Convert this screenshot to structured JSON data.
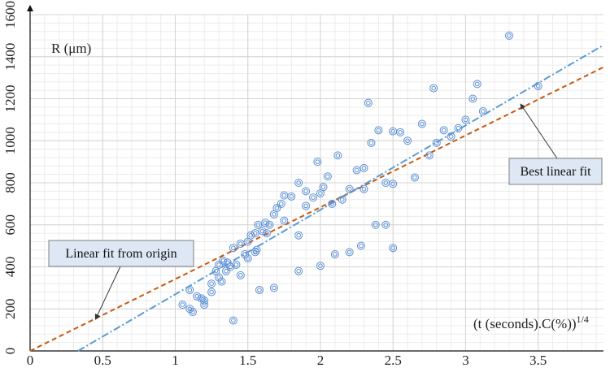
{
  "chart_data": {
    "type": "scatter",
    "ylabel": "R (μm)",
    "xlabel_base": "(t (seconds).C(%))",
    "xlabel_sup": "1/4",
    "xlim": [
      0,
      3.95
    ],
    "ylim": [
      0,
      1600
    ],
    "x_ticks": [
      "0",
      "0.5",
      "1",
      "1.5",
      "2",
      "2.5",
      "3",
      "3.5"
    ],
    "x_tick_values": [
      0,
      0.5,
      1,
      1.5,
      2,
      2.5,
      3,
      3.5
    ],
    "y_ticks": [
      "0",
      "200",
      "400",
      "600",
      "800",
      "1000",
      "1200",
      "1400",
      "1600"
    ],
    "y_tick_values": [
      0,
      200,
      400,
      600,
      800,
      1000,
      1200,
      1400,
      1600
    ],
    "grid": true,
    "marker_color": "#5b8fd4",
    "points": [
      [
        1.05,
        220
      ],
      [
        1.1,
        200
      ],
      [
        1.12,
        185
      ],
      [
        1.1,
        290
      ],
      [
        1.15,
        260
      ],
      [
        1.18,
        250
      ],
      [
        1.2,
        240
      ],
      [
        1.2,
        220
      ],
      [
        1.25,
        320
      ],
      [
        1.28,
        380
      ],
      [
        1.3,
        350
      ],
      [
        1.32,
        330
      ],
      [
        1.3,
        410
      ],
      [
        1.33,
        430
      ],
      [
        1.36,
        420
      ],
      [
        1.38,
        400
      ],
      [
        1.4,
        490
      ],
      [
        1.42,
        410
      ],
      [
        1.45,
        510
      ],
      [
        1.48,
        460
      ],
      [
        1.5,
        520
      ],
      [
        1.52,
        550
      ],
      [
        1.55,
        560
      ],
      [
        1.56,
        480
      ],
      [
        1.57,
        600
      ],
      [
        1.6,
        570
      ],
      [
        1.62,
        610
      ],
      [
        1.65,
        600
      ],
      [
        1.68,
        650
      ],
      [
        1.7,
        680
      ],
      [
        1.73,
        700
      ],
      [
        1.75,
        740
      ],
      [
        1.8,
        735
      ],
      [
        1.85,
        800
      ],
      [
        1.9,
        690
      ],
      [
        1.95,
        730
      ],
      [
        1.98,
        900
      ],
      [
        2.0,
        750
      ],
      [
        2.02,
        780
      ],
      [
        2.05,
        830
      ],
      [
        2.08,
        700
      ],
      [
        2.12,
        930
      ],
      [
        2.15,
        720
      ],
      [
        2.2,
        770
      ],
      [
        2.25,
        860
      ],
      [
        2.3,
        770
      ],
      [
        2.35,
        990
      ],
      [
        2.4,
        1050
      ],
      [
        2.45,
        800
      ],
      [
        2.5,
        795
      ],
      [
        2.5,
        1045
      ],
      [
        2.55,
        1040
      ],
      [
        2.6,
        1000
      ],
      [
        2.65,
        825
      ],
      [
        2.7,
        1080
      ],
      [
        2.75,
        930
      ],
      [
        2.8,
        990
      ],
      [
        2.85,
        1050
      ],
      [
        2.9,
        1020
      ],
      [
        2.95,
        1060
      ],
      [
        3.0,
        1100
      ],
      [
        3.05,
        1200
      ],
      [
        3.08,
        1270
      ],
      [
        3.12,
        1140
      ],
      [
        2.33,
        1180
      ],
      [
        2.78,
        1250
      ],
      [
        3.3,
        1500
      ],
      [
        3.5,
        1260
      ],
      [
        2.3,
        870
      ],
      [
        1.45,
        360
      ],
      [
        1.5,
        440
      ],
      [
        1.55,
        470
      ],
      [
        1.58,
        290
      ],
      [
        1.68,
        300
      ],
      [
        1.4,
        145
      ],
      [
        1.85,
        380
      ],
      [
        2.0,
        405
      ],
      [
        2.1,
        460
      ],
      [
        2.2,
        470
      ],
      [
        2.28,
        500
      ],
      [
        2.45,
        600
      ],
      [
        2.5,
        490
      ],
      [
        2.38,
        600
      ],
      [
        1.85,
        550
      ],
      [
        1.75,
        620
      ],
      [
        1.9,
        760
      ],
      [
        1.63,
        560
      ],
      [
        1.25,
        280
      ],
      [
        1.35,
        380
      ]
    ],
    "fits": [
      {
        "name": "Linear fit from origin",
        "color": "#c55a11",
        "dash": "6,4",
        "x1": 0,
        "y1": 0,
        "x2": 3.95,
        "y2": 1350
      },
      {
        "name": "Best linear fit",
        "color": "#5b9bd5",
        "dash": "9,3,2,3",
        "x1": 0.33,
        "y1": 0,
        "x2": 3.95,
        "y2": 1455
      }
    ],
    "annotations": [
      {
        "text": "Linear fit from origin",
        "box_x": 0.27,
        "box_y": 580,
        "w": 3.2,
        "target_x": 0.45,
        "target_y": 150
      },
      {
        "text": "Best linear fit",
        "box_x": 3.28,
        "box_y": 880,
        "w": 0.5,
        "target_x": 3.2,
        "target_y": 1150
      }
    ]
  }
}
